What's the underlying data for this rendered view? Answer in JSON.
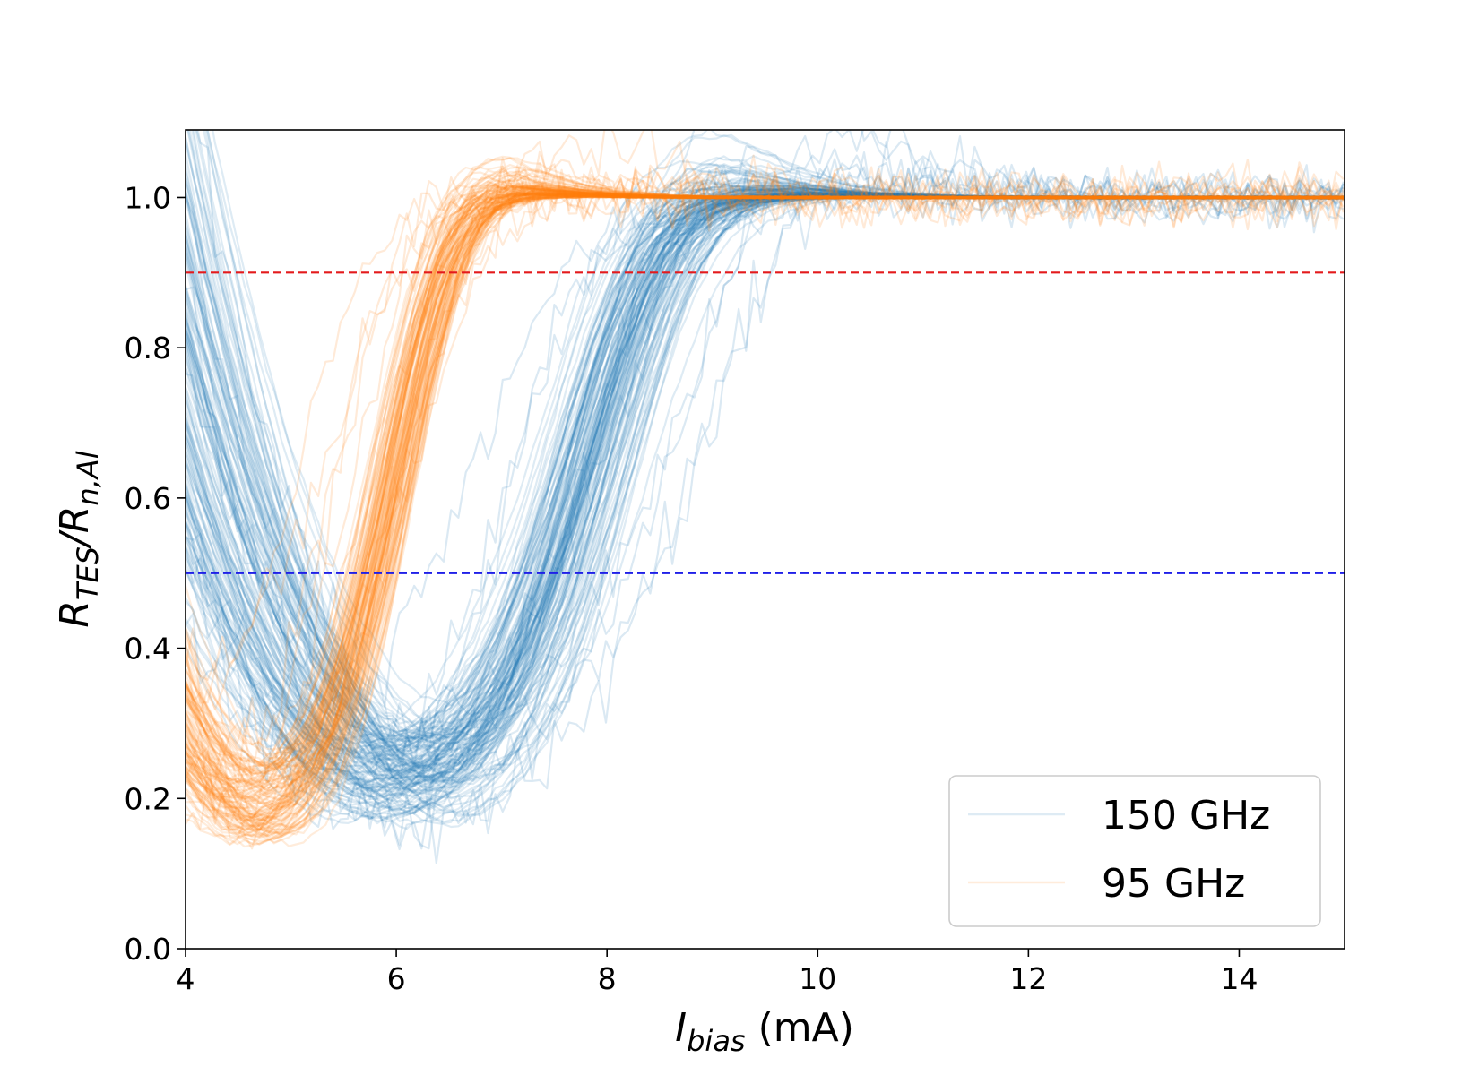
{
  "chart_data": {
    "type": "line",
    "title": "",
    "xlabel": {
      "symbol": "I",
      "subscript": "bias",
      "unit": " (mA)"
    },
    "ylabel": {
      "num": "R",
      "num_sub": "TES",
      "den": "R",
      "den_sub": "n,Al"
    },
    "xlim": [
      4,
      15
    ],
    "ylim": [
      0,
      1.09
    ],
    "xticks": [
      4,
      6,
      8,
      10,
      12,
      14
    ],
    "xtick_labels": [
      "4",
      "6",
      "8",
      "10",
      "12",
      "14"
    ],
    "yticks": [
      0.0,
      0.2,
      0.4,
      0.6,
      0.8,
      1.0
    ],
    "ytick_labels": [
      "0.0",
      "0.2",
      "0.4",
      "0.6",
      "0.8",
      "1.0"
    ],
    "grid": false,
    "legend_position": "lower-right",
    "reference_lines": [
      {
        "y": 0.9,
        "color": "#e41a1c",
        "style": "dashed"
      },
      {
        "y": 0.5,
        "color": "#1f1fe8",
        "style": "dashed"
      }
    ],
    "series": [
      {
        "name": "150 GHz",
        "color": "#1f77b4",
        "n_traces": 150,
        "typical_trace": {
          "x": [
            4.0,
            5.0,
            6.0,
            6.5,
            7.0,
            7.5,
            8.0,
            8.5,
            9.0,
            9.5,
            10.0,
            11.0,
            12.0,
            15.0
          ],
          "y": [
            0.62,
            0.36,
            0.24,
            0.21,
            0.24,
            0.29,
            0.4,
            0.56,
            0.74,
            0.88,
            0.97,
            1.0,
            1.0,
            1.0
          ]
        },
        "transition_midpoint_range_mA": [
          7.6,
          8.6
        ]
      },
      {
        "name": "95 GHz",
        "color": "#ff7f0e",
        "n_traces": 120,
        "typical_trace": {
          "x": [
            4.0,
            4.5,
            5.0,
            5.5,
            6.0,
            6.5,
            7.0,
            7.5,
            8.0,
            9.0,
            15.0
          ],
          "y": [
            0.36,
            0.26,
            0.21,
            0.27,
            0.46,
            0.7,
            0.9,
            0.97,
            0.99,
            1.0,
            1.0
          ]
        },
        "transition_midpoint_range_mA": [
          5.9,
          6.4
        ]
      }
    ]
  }
}
